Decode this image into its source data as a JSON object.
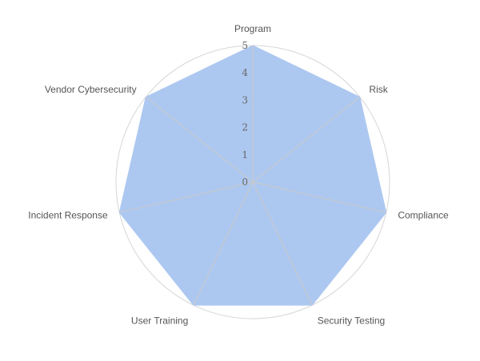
{
  "chart_data": {
    "type": "radar",
    "categories": [
      "Program",
      "Risk",
      "Compliance",
      "Security Testing",
      "User Training",
      "Incident Response",
      "Vendor Cybersecurity"
    ],
    "values": [
      5,
      5,
      5,
      5,
      5,
      5,
      5
    ],
    "rlim": [
      0,
      5
    ],
    "ticks": [
      0,
      1,
      2,
      3,
      4,
      5
    ],
    "fill_color": "#adc8f0",
    "grid": true,
    "grid_shape": "circle"
  }
}
